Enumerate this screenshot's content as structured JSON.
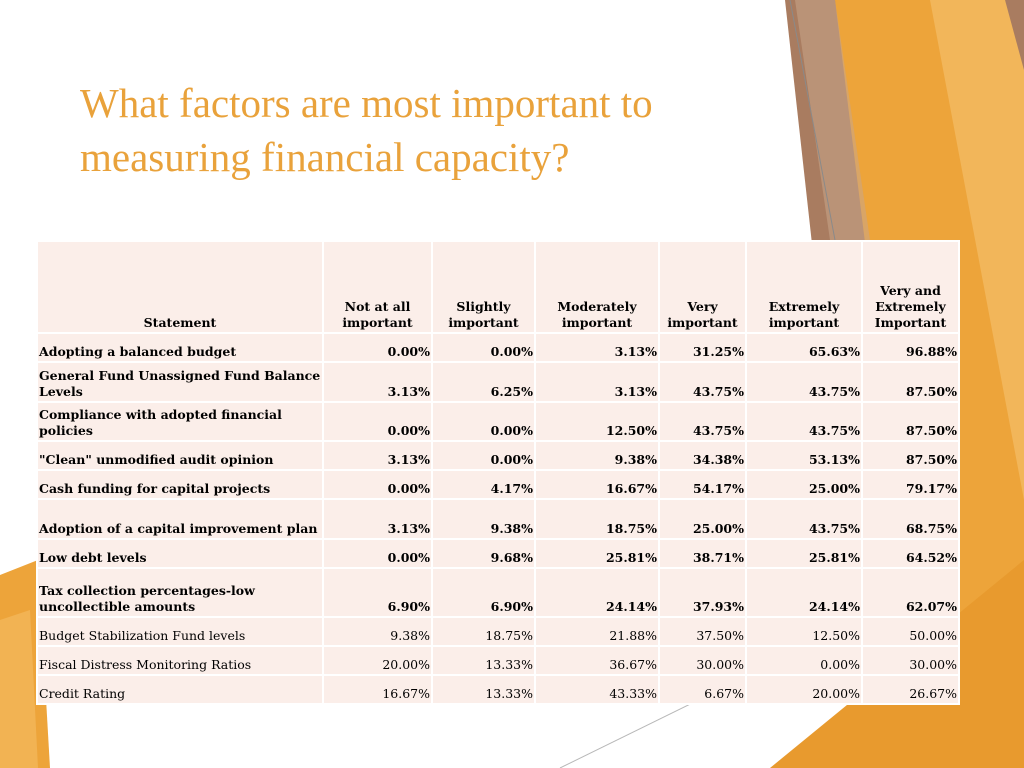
{
  "slide": {
    "title": "What factors are most important to measuring financial capacity?"
  },
  "colors": {
    "title": "#E9A23B",
    "cell_fill": "#FBEEE9",
    "accent_orange": "#EDA43A",
    "accent_brown": "#A97C60"
  },
  "table": {
    "headers": [
      "Statement",
      "Not at all important",
      "Slightly important",
      "Moderately important",
      "Very important",
      "Extremely important",
      "Very and Extremely Important"
    ],
    "rows": [
      {
        "statement": "Adopting a balanced budget",
        "values": [
          "0.00%",
          "0.00%",
          "3.13%",
          "31.25%",
          "65.63%",
          "96.88%"
        ]
      },
      {
        "statement": "General Fund Unassigned Fund Balance Levels",
        "values": [
          "3.13%",
          "6.25%",
          "3.13%",
          "43.75%",
          "43.75%",
          "87.50%"
        ]
      },
      {
        "statement": "Compliance with adopted financial policies",
        "values": [
          "0.00%",
          "0.00%",
          "12.50%",
          "43.75%",
          "43.75%",
          "87.50%"
        ]
      },
      {
        "statement": "\"Clean\" unmodified audit opinion",
        "values": [
          "3.13%",
          "0.00%",
          "9.38%",
          "34.38%",
          "53.13%",
          "87.50%"
        ]
      },
      {
        "statement": "Cash funding for capital projects",
        "values": [
          "0.00%",
          "4.17%",
          "16.67%",
          "54.17%",
          "25.00%",
          "79.17%"
        ]
      },
      {
        "statement": "Adoption of a capital improvement plan",
        "values": [
          "3.13%",
          "9.38%",
          "18.75%",
          "25.00%",
          "43.75%",
          "68.75%"
        ]
      },
      {
        "statement": "Low debt levels",
        "values": [
          "0.00%",
          "9.68%",
          "25.81%",
          "38.71%",
          "25.81%",
          "64.52%"
        ]
      },
      {
        "statement": "Tax collection percentages-low uncollectible amounts",
        "values": [
          "6.90%",
          "6.90%",
          "24.14%",
          "37.93%",
          "24.14%",
          "62.07%"
        ]
      },
      {
        "statement": "Budget Stabilization Fund levels",
        "values": [
          "9.38%",
          "18.75%",
          "21.88%",
          "37.50%",
          "12.50%",
          "50.00%"
        ]
      },
      {
        "statement": "Fiscal Distress Monitoring Ratios",
        "values": [
          "20.00%",
          "13.33%",
          "36.67%",
          "30.00%",
          "0.00%",
          "30.00%"
        ]
      },
      {
        "statement": "Credit Rating",
        "values": [
          "16.67%",
          "13.33%",
          "43.33%",
          "6.67%",
          "20.00%",
          "26.67%"
        ]
      }
    ]
  }
}
